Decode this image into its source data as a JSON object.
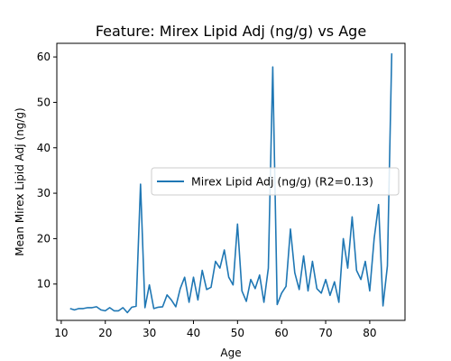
{
  "chart_data": {
    "type": "line",
    "title": "Feature: Mirex Lipid Adj (ng/g) vs Age",
    "xlabel": "Age",
    "ylabel": "Mean Mirex Lipid Adj (ng/g)",
    "xlim": [
      9,
      88
    ],
    "ylim": [
      2,
      63
    ],
    "xticks": [
      10,
      20,
      30,
      40,
      50,
      60,
      70,
      80
    ],
    "yticks": [
      10,
      20,
      30,
      40,
      50,
      60
    ],
    "grid": false,
    "legend_position": "center-right",
    "series": [
      {
        "name": "Mirex Lipid Adj (ng/g) (R2=0.13)",
        "color": "#1f77b4",
        "x": [
          12,
          13,
          14,
          15,
          16,
          17,
          18,
          19,
          20,
          21,
          22,
          23,
          24,
          25,
          26,
          27,
          28,
          29,
          30,
          31,
          32,
          33,
          34,
          35,
          36,
          37,
          38,
          39,
          40,
          41,
          42,
          43,
          44,
          45,
          46,
          47,
          48,
          49,
          50,
          51,
          52,
          53,
          54,
          55,
          56,
          57,
          58,
          59,
          60,
          61,
          62,
          63,
          64,
          65,
          66,
          67,
          68,
          69,
          70,
          71,
          72,
          73,
          74,
          75,
          76,
          77,
          78,
          79,
          80,
          81,
          82,
          83,
          84,
          85
        ],
        "y": [
          4.6,
          4.3,
          4.6,
          4.6,
          4.8,
          4.8,
          5.0,
          4.3,
          4.1,
          4.8,
          4.1,
          4.1,
          4.8,
          3.7,
          4.9,
          5.1,
          32.0,
          4.8,
          9.8,
          4.6,
          4.9,
          5.0,
          7.6,
          6.5,
          5.0,
          9.0,
          11.5,
          6.0,
          11.5,
          6.5,
          13.0,
          8.8,
          9.3,
          15.0,
          13.5,
          17.5,
          11.5,
          9.8,
          23.2,
          8.5,
          6.2,
          11.0,
          9.0,
          12.0,
          6.0,
          13.5,
          57.8,
          5.5,
          8.0,
          9.5,
          22.1,
          12.5,
          8.8,
          16.2,
          8.5,
          15.0,
          9.0,
          8.0,
          11.0,
          7.5,
          10.5,
          6.0,
          20.0,
          13.5,
          24.8,
          13.0,
          11.0,
          15.0,
          8.5,
          20.0,
          27.5,
          5.2,
          14.0,
          60.8
        ]
      }
    ]
  }
}
